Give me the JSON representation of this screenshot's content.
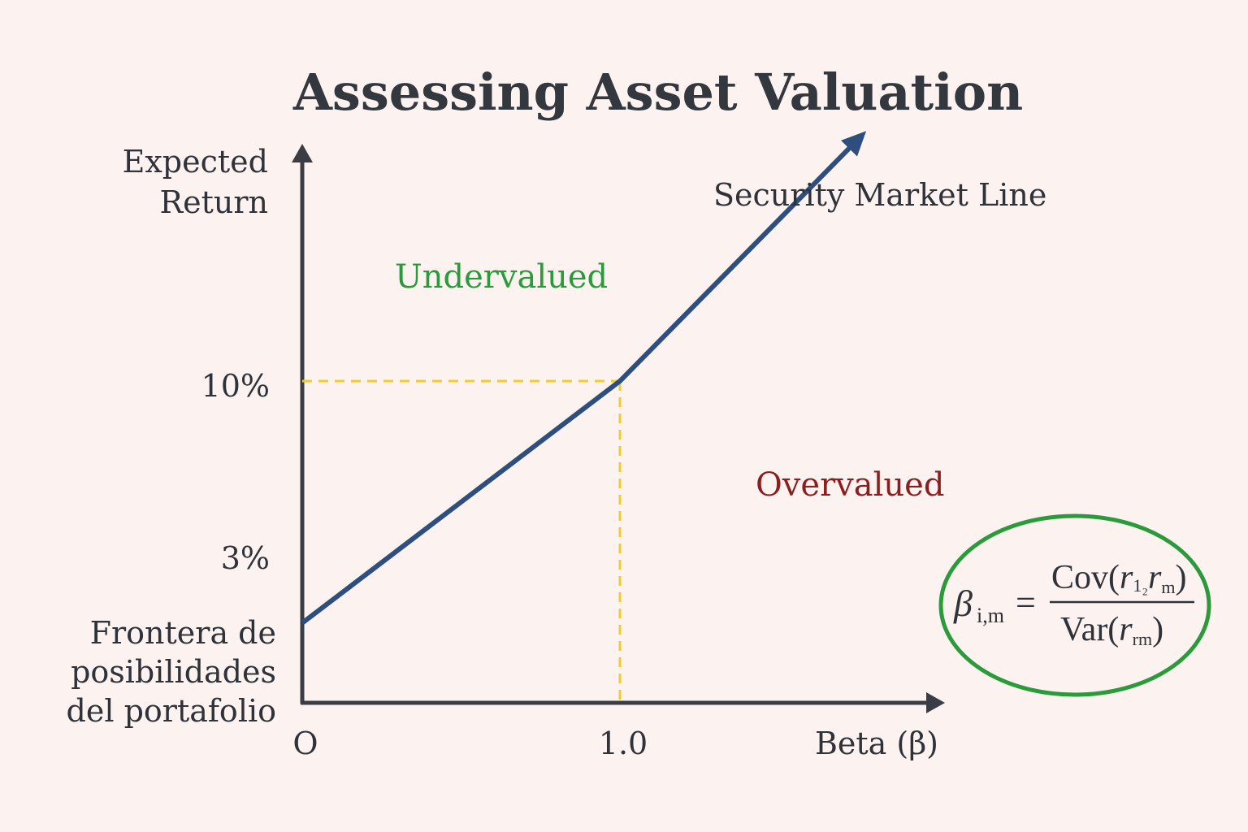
{
  "chart_data": {
    "type": "line",
    "title": "Assessing Asset Valuation",
    "ylabel_lines": [
      "Expected",
      "Return"
    ],
    "xlabel": "Beta (β)",
    "x_ticks": [
      {
        "value": 0,
        "label": "O"
      },
      {
        "value": 1.0,
        "label": "1.0"
      }
    ],
    "y_ticks": [
      {
        "value": 3,
        "label": "3%"
      },
      {
        "value": 10,
        "label": "10%"
      }
    ],
    "xlim": [
      0,
      2.0
    ],
    "ylim": [
      0,
      20
    ],
    "series": [
      {
        "name": "Security Market Line",
        "x": [
          0,
          1.0,
          1.75
        ],
        "y": [
          2.5,
          10,
          17.5
        ],
        "color": "#2e4e7e",
        "arrow_end": true
      }
    ],
    "reference_point": {
      "x": 1.0,
      "y": 10,
      "color": "#f2cc2e",
      "style": "dashed"
    },
    "regions": [
      {
        "label": "Undervalued",
        "color": "#2a9a3a",
        "position": "above-line"
      },
      {
        "label": "Overvalued",
        "color": "#8b1f1f",
        "position": "below-line"
      }
    ],
    "bottom_left_note_lines": [
      "Frontera de",
      "posibilidades",
      "del portafolio"
    ],
    "formula": {
      "lhs_symbol": "β",
      "lhs_subscript": "i,m",
      "equals": "=",
      "numerator_prefix": "Cov(",
      "numerator_r1": "r",
      "numerator_r1_sub": "1₂",
      "numerator_r2": "r",
      "numerator_r2_sub": "m",
      "numerator_suffix": ")",
      "denominator_prefix": "Var(",
      "denominator_r": "r",
      "denominator_r_sub": "rm",
      "denominator_suffix": ")",
      "border_color": "#2a9a3a"
    },
    "grid": false,
    "axis_color": "#3a3d44"
  }
}
